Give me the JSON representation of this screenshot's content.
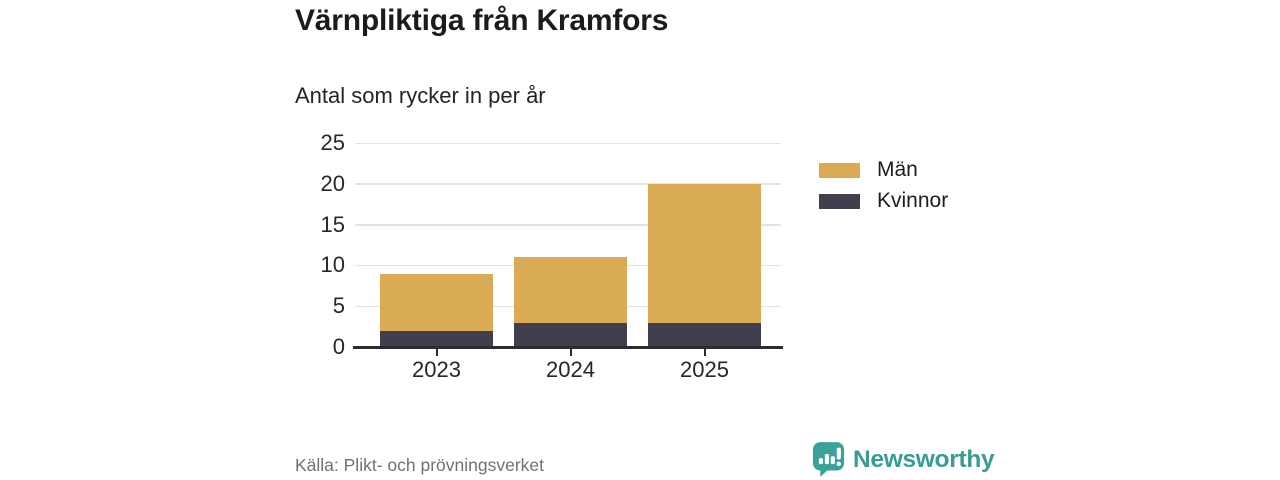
{
  "header": {
    "title": "Värnpliktiga från Kramfors",
    "subtitle": "Antal som rycker in per år"
  },
  "chart_data": {
    "type": "bar",
    "stacked": true,
    "title": "Värnpliktiga från Kramfors",
    "subtitle": "Antal som rycker in per år",
    "categories": [
      "2023",
      "2024",
      "2025"
    ],
    "series": [
      {
        "name": "Kvinnor",
        "color": "#413E4E",
        "values": [
          2,
          3,
          3
        ]
      },
      {
        "name": "Män",
        "color": "#D9AB55",
        "values": [
          7,
          8,
          17
        ]
      }
    ],
    "totals": [
      9,
      11,
      20
    ],
    "xlabel": "",
    "ylabel": "",
    "ylim": [
      0,
      25
    ],
    "yticks": [
      0,
      5,
      10,
      15,
      20,
      25
    ],
    "grid": true,
    "legend_position": "right"
  },
  "legend": {
    "items": [
      {
        "label": "Män",
        "color": "#D9AB55"
      },
      {
        "label": "Kvinnor",
        "color": "#413E4E"
      }
    ]
  },
  "footer": {
    "source": "Källa: Plikt- och prövningsverket",
    "brand": "Newsworthy"
  },
  "colors": {
    "men": "#D9AB55",
    "women": "#413E4E",
    "brand_teal": "#389C94",
    "icon_teal": "#3BA299",
    "axis": "#2B2B33",
    "gridline": "#E3E3E5",
    "source_text": "#70707A"
  }
}
